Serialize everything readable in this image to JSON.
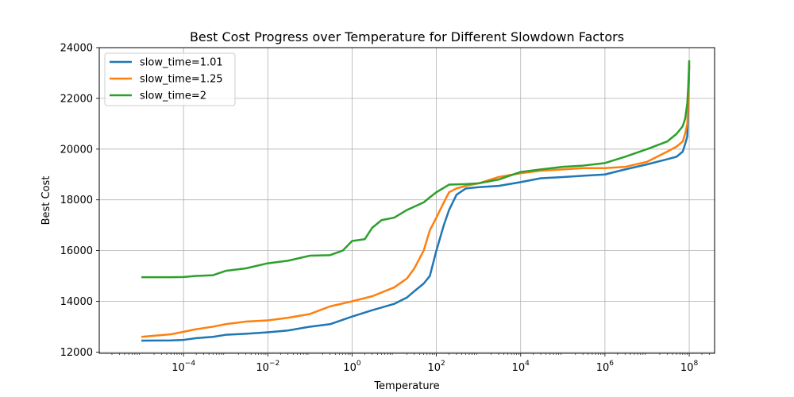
{
  "chart_data": {
    "type": "line",
    "title": "Best Cost Progress over Temperature for Different Slowdown Factors",
    "xlabel": "Temperature",
    "ylabel": "Best Cost",
    "xscale": "log",
    "xlim": [
      1e-06,
      400000000.0
    ],
    "ylim": [
      11950,
      24000
    ],
    "x_ticks": [
      {
        "value": 0.0001,
        "base": "10",
        "exp": "−4"
      },
      {
        "value": 0.01,
        "base": "10",
        "exp": "−2"
      },
      {
        "value": 1,
        "base": "10",
        "exp": "0"
      },
      {
        "value": 100,
        "base": "10",
        "exp": "2"
      },
      {
        "value": 10000.0,
        "base": "10",
        "exp": "4"
      },
      {
        "value": 1000000.0,
        "base": "10",
        "exp": "6"
      },
      {
        "value": 100000000.0,
        "base": "10",
        "exp": "8"
      }
    ],
    "y_ticks": [
      12000,
      14000,
      16000,
      18000,
      20000,
      22000,
      24000
    ],
    "grid": true,
    "legend_position": "top-left",
    "series": [
      {
        "name": "slow_time=1.01",
        "color": "#1f77b4",
        "x": [
          1e-05,
          5e-05,
          0.0001,
          0.0002,
          0.0005,
          0.001,
          0.003,
          0.01,
          0.03,
          0.1,
          0.3,
          1,
          3,
          10,
          20,
          30,
          50,
          70,
          100,
          150,
          200,
          300,
          500,
          1000,
          3000,
          10000,
          30000,
          100000,
          300000,
          1000000,
          3000000,
          10000000,
          30000000,
          50000000,
          70000000,
          80000000,
          90000000,
          95000000,
          100000000
        ],
        "y": [
          12450,
          12460,
          12480,
          12550,
          12600,
          12680,
          12720,
          12780,
          12850,
          13000,
          13100,
          13400,
          13650,
          13900,
          14150,
          14400,
          14700,
          15000,
          16000,
          17000,
          17600,
          18200,
          18450,
          18500,
          18550,
          18700,
          18850,
          18900,
          18950,
          19000,
          19200,
          19400,
          19600,
          19700,
          19900,
          20200,
          20500,
          21500,
          23300
        ]
      },
      {
        "name": "slow_time=1.25",
        "color": "#ff7f0e",
        "x": [
          1e-05,
          5e-05,
          0.0001,
          0.0002,
          0.0005,
          0.001,
          0.003,
          0.01,
          0.03,
          0.1,
          0.3,
          1,
          3,
          10,
          20,
          30,
          50,
          70,
          100,
          150,
          200,
          300,
          500,
          1000,
          3000,
          10000,
          30000,
          100000,
          300000,
          1000000,
          3000000,
          10000000,
          30000000,
          50000000,
          70000000,
          80000000,
          90000000,
          95000000,
          100000000
        ],
        "y": [
          12600,
          12700,
          12800,
          12900,
          13000,
          13100,
          13200,
          13250,
          13350,
          13500,
          13800,
          14000,
          14200,
          14550,
          14900,
          15300,
          16000,
          16800,
          17300,
          17900,
          18300,
          18450,
          18550,
          18650,
          18900,
          19050,
          19150,
          19200,
          19250,
          19250,
          19300,
          19500,
          19900,
          20100,
          20300,
          20600,
          21000,
          22000,
          23400
        ]
      },
      {
        "name": "slow_time=2",
        "color": "#2ca02c",
        "x": [
          1e-05,
          5e-05,
          0.0001,
          0.0002,
          0.0005,
          0.001,
          0.003,
          0.01,
          0.03,
          0.1,
          0.3,
          0.6,
          1,
          2,
          3,
          5,
          10,
          20,
          50,
          70,
          100,
          200,
          500,
          1000,
          3000,
          10000,
          30000,
          100000,
          300000,
          1000000,
          3000000,
          10000000,
          30000000,
          50000000,
          70000000,
          80000000,
          90000000,
          95000000,
          100000000
        ],
        "y": [
          14950,
          14950,
          14960,
          15000,
          15030,
          15200,
          15300,
          15500,
          15600,
          15800,
          15820,
          16000,
          16380,
          16450,
          16900,
          17200,
          17300,
          17600,
          17900,
          18100,
          18300,
          18600,
          18620,
          18650,
          18800,
          19100,
          19200,
          19300,
          19350,
          19450,
          19700,
          20000,
          20300,
          20600,
          20900,
          21200,
          21800,
          22500,
          23500
        ]
      }
    ]
  }
}
